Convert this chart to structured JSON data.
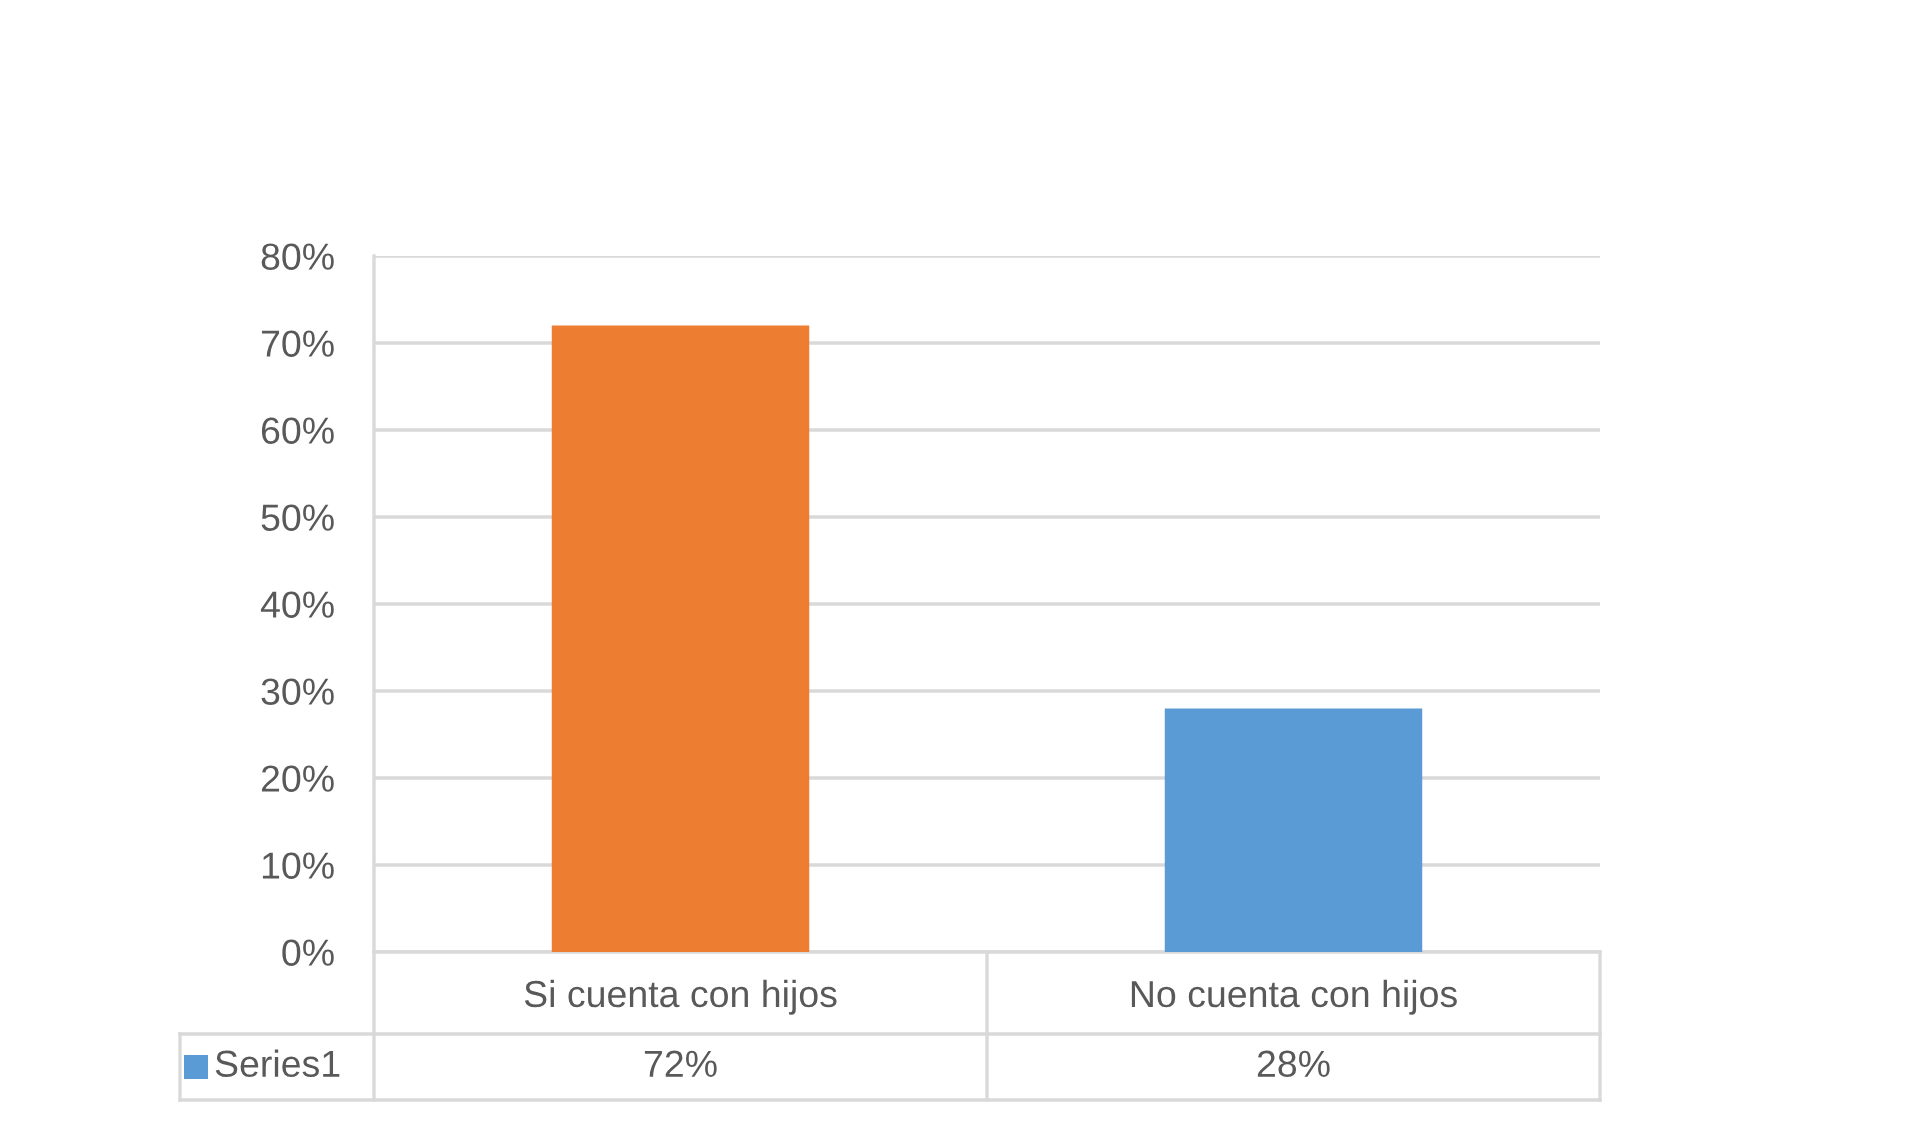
{
  "chart_data": {
    "type": "bar",
    "categories": [
      "Si cuenta con hijos",
      "No cuenta con hijos"
    ],
    "series": [
      {
        "name": "Series1",
        "color": "#5b9bd5",
        "colors": [
          "#ed7d31",
          "#5b9bd5"
        ],
        "values": [
          72,
          28
        ],
        "value_labels": [
          "72%",
          "28%"
        ]
      }
    ],
    "ylim": [
      0,
      80
    ],
    "yticks": [
      {
        "value": 0,
        "label": "0%"
      },
      {
        "value": 10,
        "label": "10%"
      },
      {
        "value": 20,
        "label": "20%"
      },
      {
        "value": 30,
        "label": "30%"
      },
      {
        "value": 40,
        "label": "40%"
      },
      {
        "value": 50,
        "label": "50%"
      },
      {
        "value": 60,
        "label": "60%"
      },
      {
        "value": 70,
        "label": "70%"
      },
      {
        "value": 80,
        "label": "80%"
      }
    ],
    "grid": "y",
    "legend": "bottom"
  }
}
